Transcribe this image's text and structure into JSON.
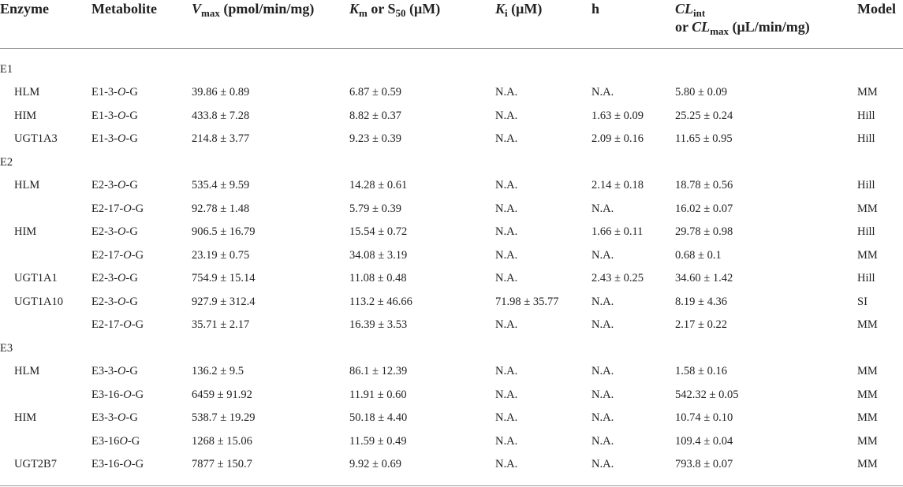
{
  "headers": {
    "enzyme": "Enzyme",
    "metabolite": "Metabolite",
    "vmax_sym": "V",
    "vmax_sub": "max",
    "vmax_unit": " (pmol/min/mg)",
    "km_sym": "K",
    "km_sub": "m",
    "km_or": " or S",
    "s_sub": "50",
    "km_unit": " (μM)",
    "ki_sym": "K",
    "ki_sub": "i",
    "ki_unit": " (μM)",
    "h": "h",
    "cl_sym": "CL",
    "cl_sub": "int",
    "cl_or": "or ",
    "cl_sym2": "CL",
    "cl_sub2": "max",
    "cl_unit": " (μL/min/mg)",
    "model": "Model"
  },
  "groups": {
    "e1": "E1",
    "e2": "E2",
    "e3": "E3"
  },
  "rows": [
    {
      "enzyme": "HLM",
      "met_pre": "E1-3-",
      "met_it": "O",
      "met_post": "-G",
      "vmax": "39.86 ± 0.89",
      "km": "6.87 ± 0.59",
      "ki": "N.A.",
      "h": "N.A.",
      "cl": "5.80 ± 0.09",
      "model": "MM"
    },
    {
      "enzyme": "HIM",
      "met_pre": "E1-3-",
      "met_it": "O",
      "met_post": "-G",
      "vmax": "433.8 ± 7.28",
      "km": "8.82 ± 0.37",
      "ki": "N.A.",
      "h": "1.63 ± 0.09",
      "cl": "25.25 ± 0.24",
      "model": "Hill"
    },
    {
      "enzyme": "UGT1A3",
      "met_pre": "E1-3-",
      "met_it": "O",
      "met_post": "-G",
      "vmax": "214.8 ± 3.77",
      "km": "9.23 ± 0.39",
      "ki": "N.A.",
      "h": "2.09 ± 0.16",
      "cl": "11.65 ± 0.95",
      "model": "Hill"
    },
    {
      "enzyme": "HLM",
      "met_pre": "E2-3-",
      "met_it": "O",
      "met_post": "-G",
      "vmax": "535.4 ± 9.59",
      "km": "14.28 ± 0.61",
      "ki": "N.A.",
      "h": "2.14 ± 0.18",
      "cl": "18.78 ± 0.56",
      "model": "Hill"
    },
    {
      "enzyme": "",
      "met_pre": "E2-17-",
      "met_it": "O",
      "met_post": "-G",
      "vmax": "92.78 ± 1.48",
      "km": "5.79 ± 0.39",
      "ki": "N.A.",
      "h": "N.A.",
      "cl": "16.02 ± 0.07",
      "model": "MM"
    },
    {
      "enzyme": "HIM",
      "met_pre": "E2-3-",
      "met_it": "O",
      "met_post": "-G",
      "vmax": "906.5 ± 16.79",
      "km": "15.54 ± 0.72",
      "ki": "N.A.",
      "h": "1.66 ± 0.11",
      "cl": "29.78 ± 0.98",
      "model": "Hill"
    },
    {
      "enzyme": "",
      "met_pre": "E2-17-",
      "met_it": "O",
      "met_post": "-G",
      "vmax": "23.19 ± 0.75",
      "km": "34.08 ± 3.19",
      "ki": "N.A.",
      "h": "N.A.",
      "cl": "0.68 ± 0.1",
      "model": "MM"
    },
    {
      "enzyme": "UGT1A1",
      "met_pre": "E2-3-",
      "met_it": "O",
      "met_post": "-G",
      "vmax": "754.9 ± 15.14",
      "km": "11.08 ± 0.48",
      "ki": "N.A.",
      "h": "2.43 ± 0.25",
      "cl": "34.60 ± 1.42",
      "model": "Hill"
    },
    {
      "enzyme": "UGT1A10",
      "met_pre": "E2-3-",
      "met_it": "O",
      "met_post": "-G",
      "vmax": "927.9 ± 312.4",
      "km": "113.2 ± 46.66",
      "ki": "71.98 ± 35.77",
      "h": "N.A.",
      "cl": "8.19 ± 4.36",
      "model": "SI"
    },
    {
      "enzyme": "",
      "met_pre": "E2-17-",
      "met_it": "O",
      "met_post": "-G",
      "vmax": "35.71 ± 2.17",
      "km": "16.39 ± 3.53",
      "ki": "N.A.",
      "h": "N.A.",
      "cl": "2.17 ± 0.22",
      "model": "MM"
    },
    {
      "enzyme": "HLM",
      "met_pre": "E3-3-",
      "met_it": "O",
      "met_post": "-G",
      "vmax": "136.2 ± 9.5",
      "km": "86.1 ± 12.39",
      "ki": "N.A.",
      "h": "N.A.",
      "cl": "1.58 ± 0.16",
      "model": "MM"
    },
    {
      "enzyme": "",
      "met_pre": "E3-16-",
      "met_it": "O",
      "met_post": "-G",
      "vmax": "6459 ± 91.92",
      "km": "11.91 ± 0.60",
      "ki": "N.A.",
      "h": "N.A.",
      "cl": "542.32 ± 0.05",
      "model": "MM"
    },
    {
      "enzyme": "HIM",
      "met_pre": "E3-3-",
      "met_it": "O",
      "met_post": "-G",
      "vmax": "538.7 ± 19.29",
      "km": "50.18 ± 4.40",
      "ki": "N.A.",
      "h": "N.A.",
      "cl": "10.74 ± 0.10",
      "model": "MM"
    },
    {
      "enzyme": "",
      "met_pre": "E3-16",
      "met_it": "O",
      "met_post": "-G",
      "vmax": "1268 ± 15.06",
      "km": "11.59 ± 0.49",
      "ki": "N.A.",
      "h": "N.A.",
      "cl": "109.4 ± 0.04",
      "model": "MM"
    },
    {
      "enzyme": "UGT2B7",
      "met_pre": "E3-16-",
      "met_it": "O",
      "met_post": "-G",
      "vmax": "7877 ± 150.7",
      "km": "9.92 ± 0.69",
      "ki": "N.A.",
      "h": "N.A.",
      "cl": "793.8 ± 0.07",
      "model": "MM"
    }
  ]
}
